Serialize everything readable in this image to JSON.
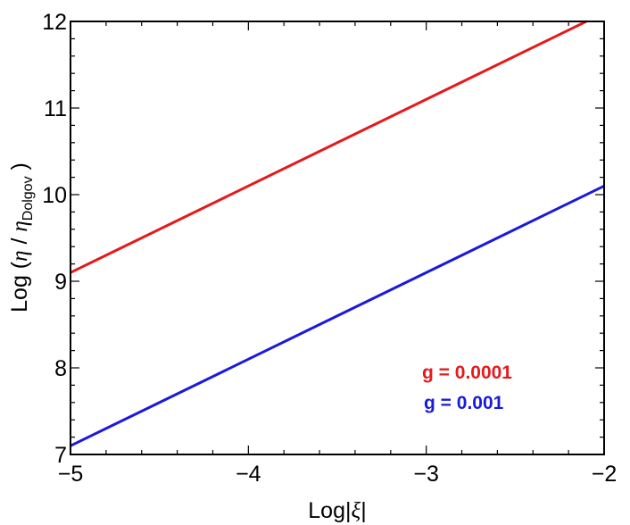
{
  "chart_data": {
    "type": "line",
    "xlabel": {
      "prefix": "Log|",
      "symbol": "ξ",
      "suffix": "|"
    },
    "ylabel": {
      "prefix": "Log (",
      "symbol": "η",
      "middle": " / ",
      "symbol2": "η",
      "subscript": "Dolgov",
      "suffix": " )"
    },
    "xlim": [
      -5,
      -2
    ],
    "ylim": [
      7,
      12
    ],
    "x_ticks": [
      -5,
      -4,
      -3,
      -2
    ],
    "x_tick_labels": [
      "−5",
      "−4",
      "−3",
      "−2"
    ],
    "y_ticks": [
      7,
      8,
      9,
      10,
      11,
      12
    ],
    "y_tick_labels": [
      "7",
      "8",
      "9",
      "10",
      "11",
      "12"
    ],
    "x_minor_step": 0.2,
    "y_minor_step": 0.2,
    "grid": false,
    "legend_position": "bottom-right",
    "series": [
      {
        "name": "g = 0.0001",
        "color": "#e41a1c",
        "x": [
          -5,
          -2.1
        ],
        "y": [
          9.1,
          12.0
        ]
      },
      {
        "name": "g = 0.001",
        "color": "#1a1adc",
        "x": [
          -5,
          -2
        ],
        "y": [
          7.1,
          10.1
        ]
      }
    ]
  }
}
